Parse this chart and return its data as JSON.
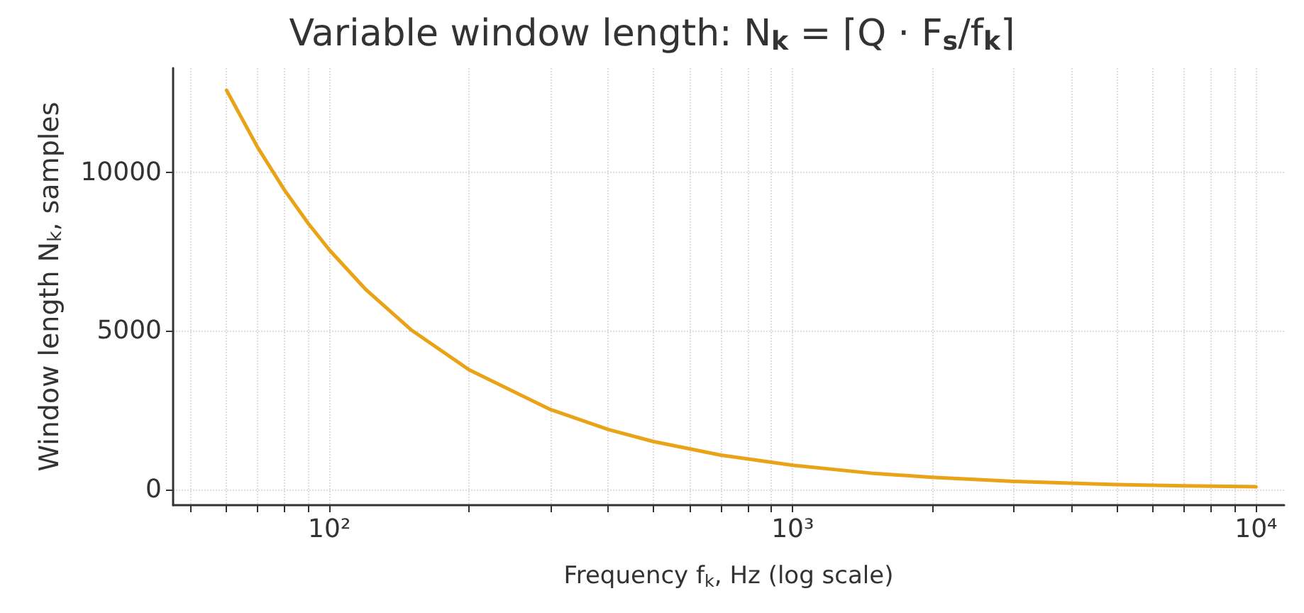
{
  "chart_data": {
    "type": "line",
    "title": "Variable window length: N$_{k}$ = ⌈Q · F$_{s}$/f$_{k}$⌉",
    "xlabel": "Frequency f$_{k}$, Hz (log scale)",
    "ylabel": "Window length N$_{k}$, samples",
    "x": [
      60,
      70,
      80,
      90,
      100,
      120,
      150,
      200,
      300,
      400,
      500,
      700,
      1000,
      1500,
      2000,
      3000,
      5000,
      7000,
      10000
    ],
    "series": [
      {
        "color": "#e8a317",
        "values": [
          12600,
          10800,
          9450,
          8400,
          7560,
          6300,
          5040,
          3780,
          2520,
          1890,
          1510,
          1080,
          760,
          500,
          380,
          250,
          150,
          110,
          80
        ]
      }
    ],
    "log": "x",
    "xlim": [
      46,
      11500
    ],
    "ylim": [
      -500,
      13300
    ],
    "xticks": [
      {
        "value": 50,
        "label": null
      },
      {
        "value": 60,
        "label": null
      },
      {
        "value": 70,
        "label": null
      },
      {
        "value": 80,
        "label": null
      },
      {
        "value": 90,
        "label": null
      },
      {
        "value": 100,
        "label": "10²"
      },
      {
        "value": 200,
        "label": null
      },
      {
        "value": 300,
        "label": null
      },
      {
        "value": 400,
        "label": null
      },
      {
        "value": 500,
        "label": null
      },
      {
        "value": 600,
        "label": null
      },
      {
        "value": 700,
        "label": null
      },
      {
        "value": 800,
        "label": null
      },
      {
        "value": 900,
        "label": null
      },
      {
        "value": 1000,
        "label": "10³"
      },
      {
        "value": 2000,
        "label": null
      },
      {
        "value": 3000,
        "label": null
      },
      {
        "value": 4000,
        "label": null
      },
      {
        "value": 5000,
        "label": null
      },
      {
        "value": 6000,
        "label": null
      },
      {
        "value": 7000,
        "label": null
      },
      {
        "value": 8000,
        "label": null
      },
      {
        "value": 9000,
        "label": null
      },
      {
        "value": 10000,
        "label": "10⁴"
      }
    ],
    "yticks": [
      0,
      5000,
      10000
    ],
    "grid": true,
    "marker": "none",
    "line_style": "solid"
  }
}
